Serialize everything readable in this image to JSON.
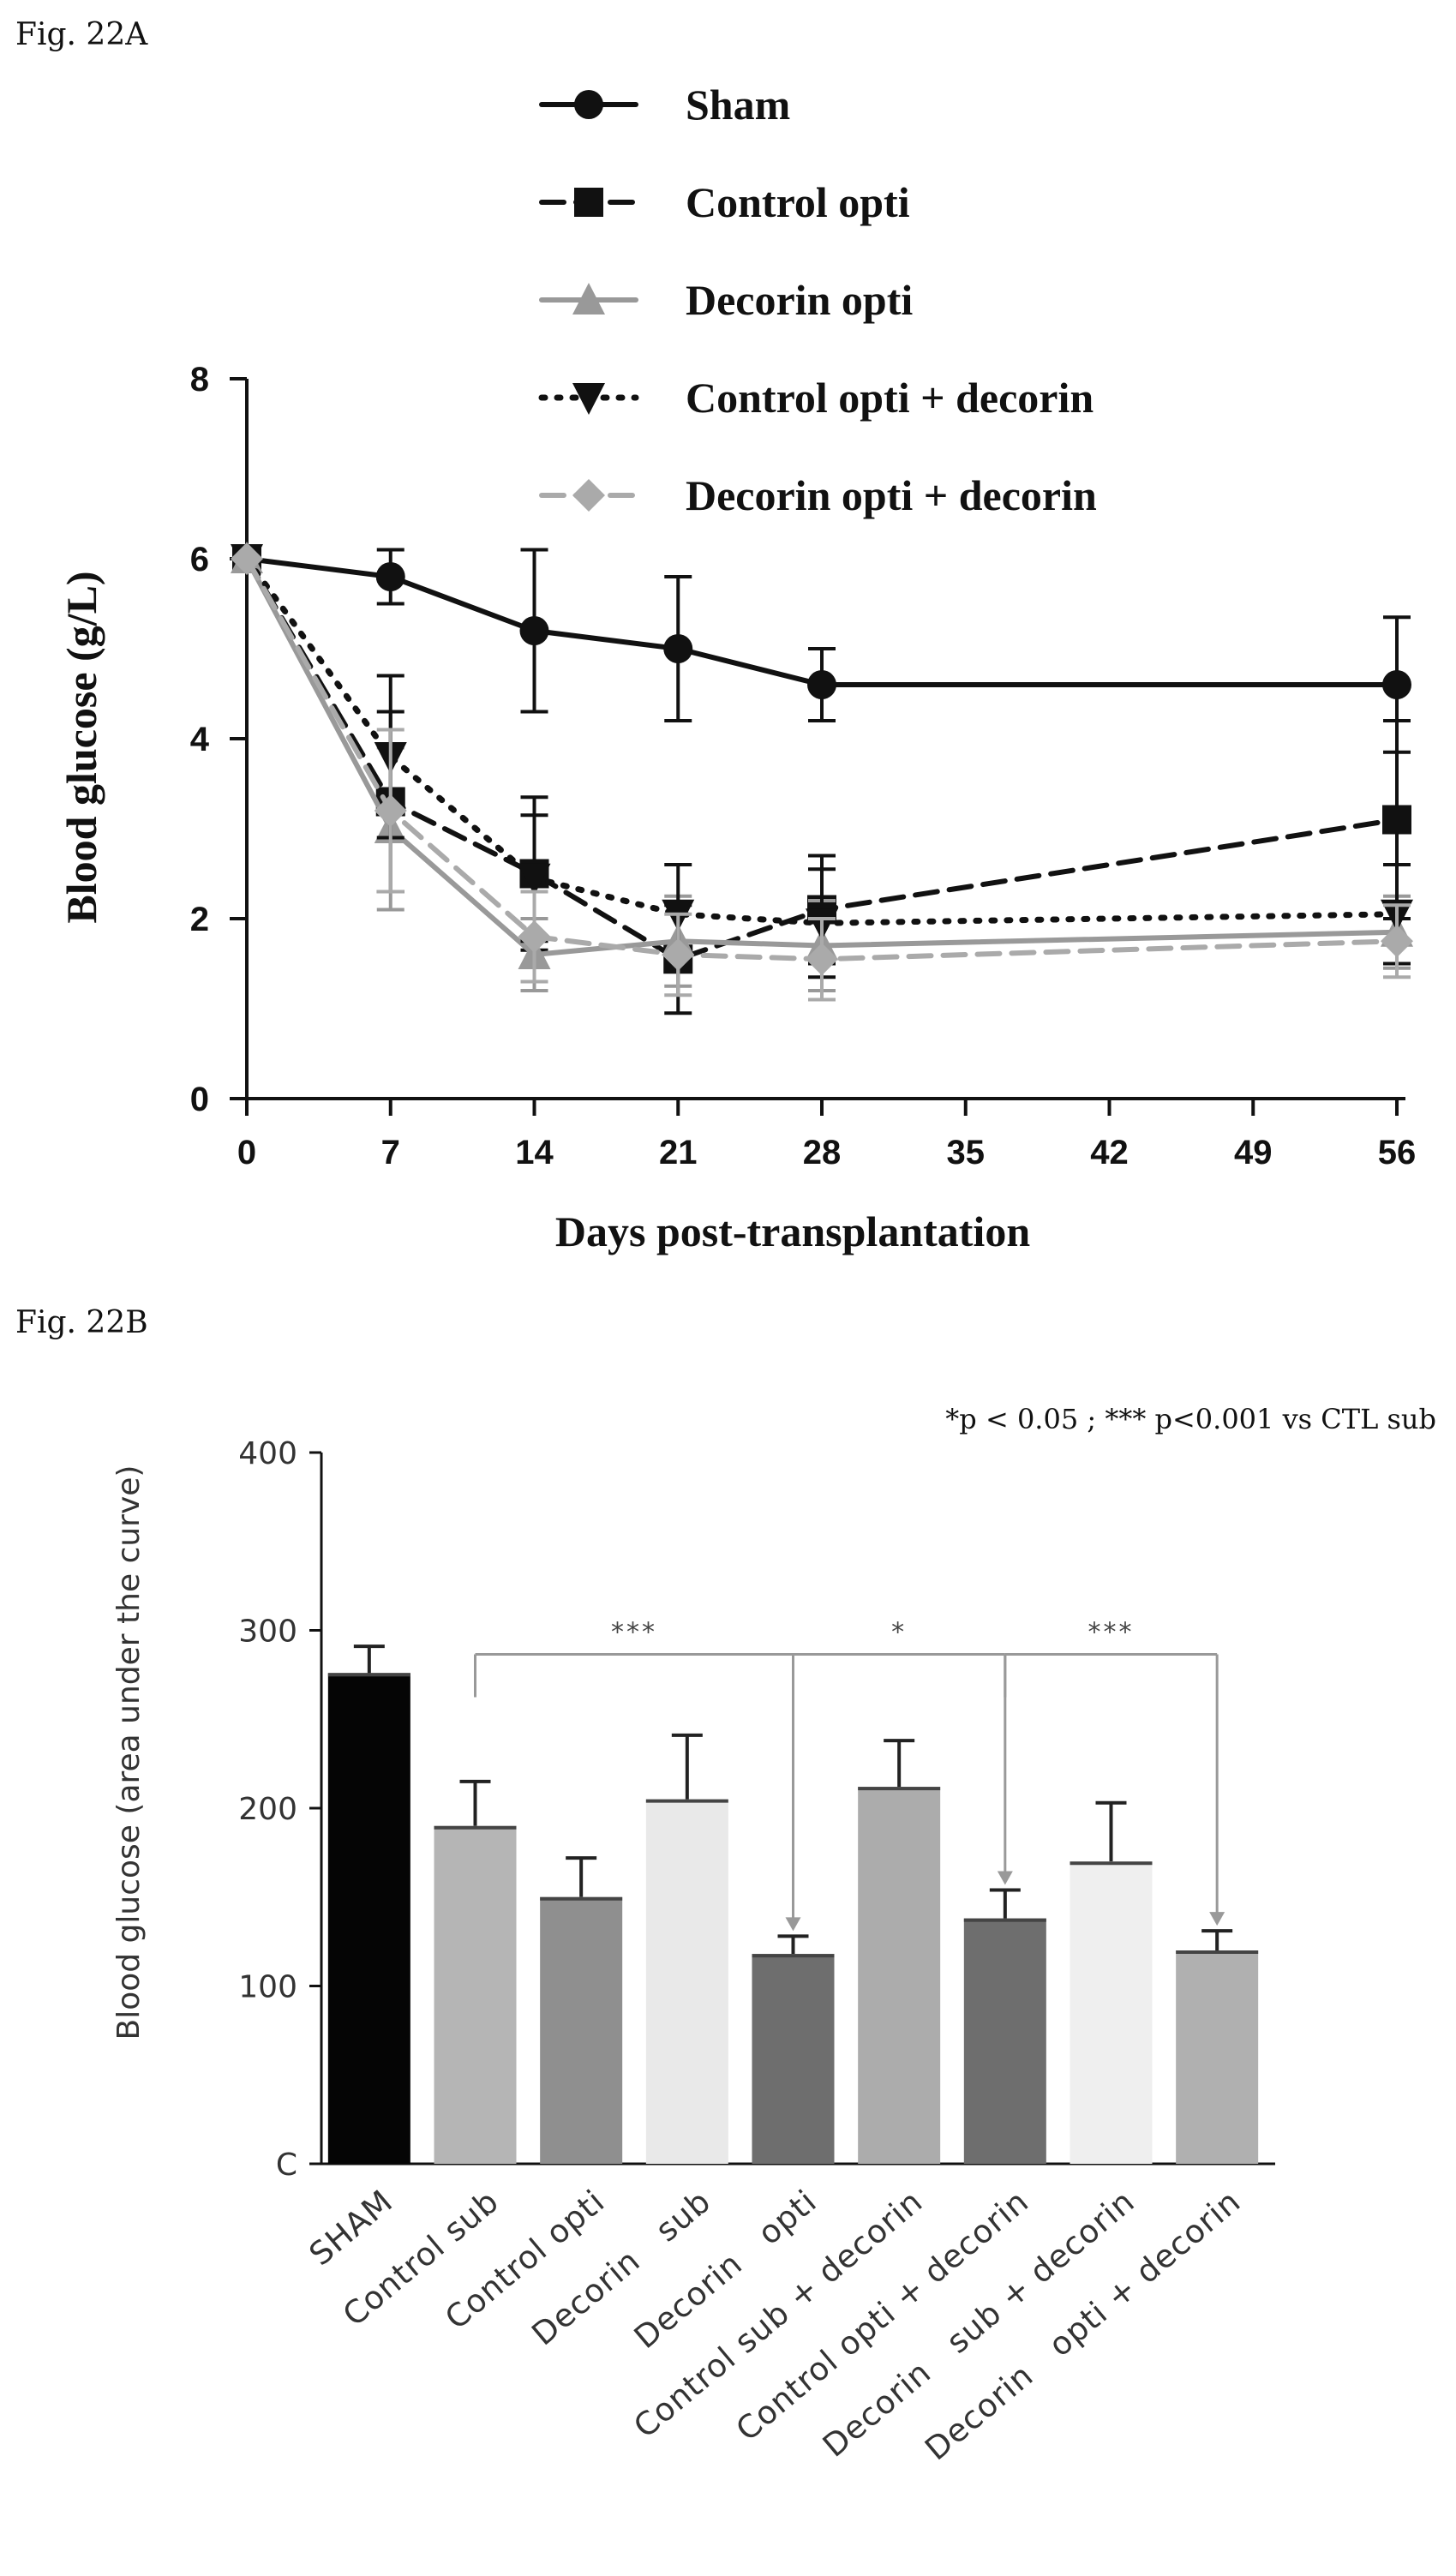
{
  "chart_data": [
    {
      "figure_label": "Fig. 22A",
      "type": "line",
      "title": "",
      "xlabel": "Days post-transplantation",
      "ylabel": "Blood glucose (g/L)",
      "xlim": [
        0,
        60
      ],
      "ylim": [
        0,
        8
      ],
      "x_ticks": [
        0,
        7,
        14,
        21,
        28,
        35,
        42,
        49,
        56
      ],
      "y_ticks": [
        0,
        2,
        4,
        6,
        8
      ],
      "x": [
        0,
        7,
        14,
        21,
        28,
        56
      ],
      "grid": false,
      "legend_position": "top",
      "series": [
        {
          "name": "Sham",
          "values": [
            6.0,
            5.8,
            5.2,
            5.0,
            4.6,
            4.6
          ],
          "errors": [
            0.0,
            0.3,
            0.9,
            0.8,
            0.4,
            0.75
          ],
          "color": "#111111",
          "dash": "solid",
          "marker": "circle"
        },
        {
          "name": "Control opti",
          "values": [
            6.0,
            3.3,
            2.5,
            1.55,
            2.1,
            3.1
          ],
          "errors": [
            0.0,
            1.0,
            0.85,
            0.6,
            0.6,
            1.1
          ],
          "color": "#111111",
          "dash": "dashed",
          "marker": "square"
        },
        {
          "name": "Decorin opti",
          "values": [
            6.0,
            3.0,
            1.6,
            1.75,
            1.7,
            1.85
          ],
          "errors": [
            0.0,
            0.9,
            0.4,
            0.5,
            0.5,
            0.4
          ],
          "color": "#999999",
          "dash": "solid",
          "marker": "triangle-up"
        },
        {
          "name": "Control opti + decorin",
          "values": [
            6.0,
            3.8,
            2.45,
            2.05,
            1.95,
            2.05
          ],
          "errors": [
            0.0,
            0.9,
            0.7,
            0.55,
            0.6,
            0.55
          ],
          "color": "#111111",
          "dash": "dotted",
          "marker": "triangle-down"
        },
        {
          "name": "Decorin opti + decorin",
          "values": [
            6.0,
            3.2,
            1.8,
            1.6,
            1.55,
            1.75
          ],
          "errors": [
            0.0,
            0.9,
            0.5,
            0.45,
            0.45,
            0.4
          ],
          "color": "#aaaaaa",
          "dash": "dashed",
          "marker": "diamond"
        }
      ]
    },
    {
      "figure_label": "Fig. 22B",
      "type": "bar",
      "title": "",
      "xlabel": "",
      "ylabel": "Blood glucose (area under the curve)",
      "ylim": [
        0,
        400
      ],
      "y_ticks": [
        0,
        100,
        200,
        300,
        400
      ],
      "y_tick_labels": [
        "C",
        "100",
        "200",
        "300",
        "400"
      ],
      "annotation": "*p < 0.05 ; *** p<0.001 vs CTL sub",
      "categories": [
        "SHAM",
        "Control sub",
        "Control opti",
        "Decorin   sub",
        "Decorin   opti",
        "Control sub + decorin",
        "Control opti + decorin",
        "Decorin   sub + decorin",
        "Decorin   opti + decorin"
      ],
      "values": [
        276,
        190,
        150,
        205,
        118,
        212,
        138,
        170,
        120
      ],
      "errors": [
        15,
        25,
        22,
        36,
        10,
        26,
        16,
        33,
        11
      ],
      "colors": [
        "#050505",
        "#b5b5b5",
        "#8f8f8f",
        "#e9e9e9",
        "#6e6e6e",
        "#acacac",
        "#6e6e6e",
        "#efefef",
        "#b0b0b0"
      ],
      "significance": [
        {
          "from_index": 1,
          "to_index": 4,
          "label": "***"
        },
        {
          "from_index": 4,
          "to_index": 6,
          "label": "*"
        },
        {
          "from_index": 6,
          "to_index": 8,
          "label": "***"
        }
      ]
    }
  ]
}
